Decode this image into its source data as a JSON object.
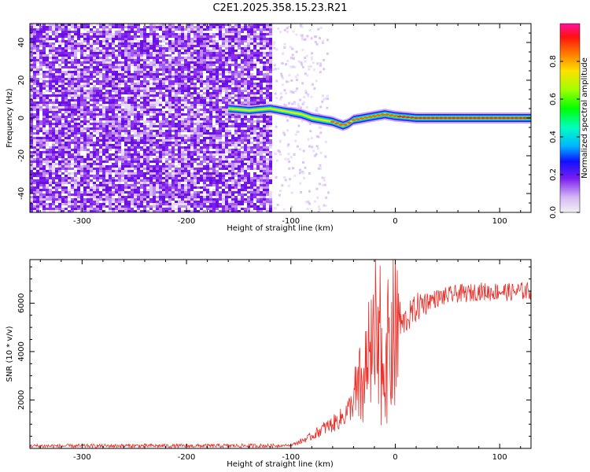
{
  "chart_data": [
    {
      "type": "heatmap",
      "title": "C2E1.2025.358.15.23.R21",
      "xlabel": "Height of straight line (km)",
      "ylabel": "Frequency (Hz)",
      "xlim": [
        -350,
        130
      ],
      "ylim": [
        -50,
        50
      ],
      "x_ticks": [
        -300,
        -200,
        -100,
        0,
        100
      ],
      "y_ticks": [
        -40,
        -20,
        0,
        20,
        40
      ],
      "noise_region_km": [
        -350,
        -118
      ],
      "signal_trace": {
        "x": [
          -160,
          -140,
          -120,
          -110,
          -100,
          -90,
          -80,
          -70,
          -60,
          -50,
          -45,
          -40,
          -30,
          -20,
          -10,
          0,
          20,
          40,
          60,
          80,
          100,
          130
        ],
        "y": [
          5,
          4,
          5,
          4,
          3,
          2,
          0,
          -1,
          -2,
          -4,
          -3,
          -1,
          0,
          1,
          2,
          1,
          0,
          0,
          0,
          0,
          0,
          0
        ]
      },
      "colorbar": {
        "label": "Normalized spectral amplitude",
        "ticks": [
          "0.0",
          "0.2",
          "0.4",
          "0.6",
          "0.8"
        ],
        "range": [
          0,
          1
        ]
      }
    },
    {
      "type": "line",
      "xlabel": "Height of straight line (km)",
      "ylabel": "SNR (10 * v/v)",
      "xlim": [
        -350,
        130
      ],
      "ylim": [
        0,
        7800
      ],
      "x_ticks": [
        -300,
        -200,
        -100,
        0,
        100
      ],
      "y_ticks": [
        2000,
        4000,
        6000
      ],
      "color": "#e8302a",
      "series": [
        {
          "name": "SNR",
          "x": [
            -350,
            -300,
            -250,
            -200,
            -150,
            -120,
            -100,
            -90,
            -80,
            -70,
            -60,
            -50,
            -40,
            -30,
            -25,
            -20,
            -15,
            -10,
            -5,
            0,
            10,
            20,
            30,
            40,
            50,
            60,
            70,
            80,
            90,
            100,
            110,
            120,
            130
          ],
          "y": [
            100,
            100,
            110,
            100,
            110,
            110,
            130,
            300,
            500,
            800,
            1000,
            1300,
            1900,
            2800,
            3600,
            3900,
            3400,
            3700,
            4200,
            4800,
            5300,
            5800,
            6100,
            6200,
            6300,
            6400,
            6400,
            6500,
            6450,
            6500,
            6450,
            6500,
            6500
          ]
        }
      ]
    }
  ]
}
